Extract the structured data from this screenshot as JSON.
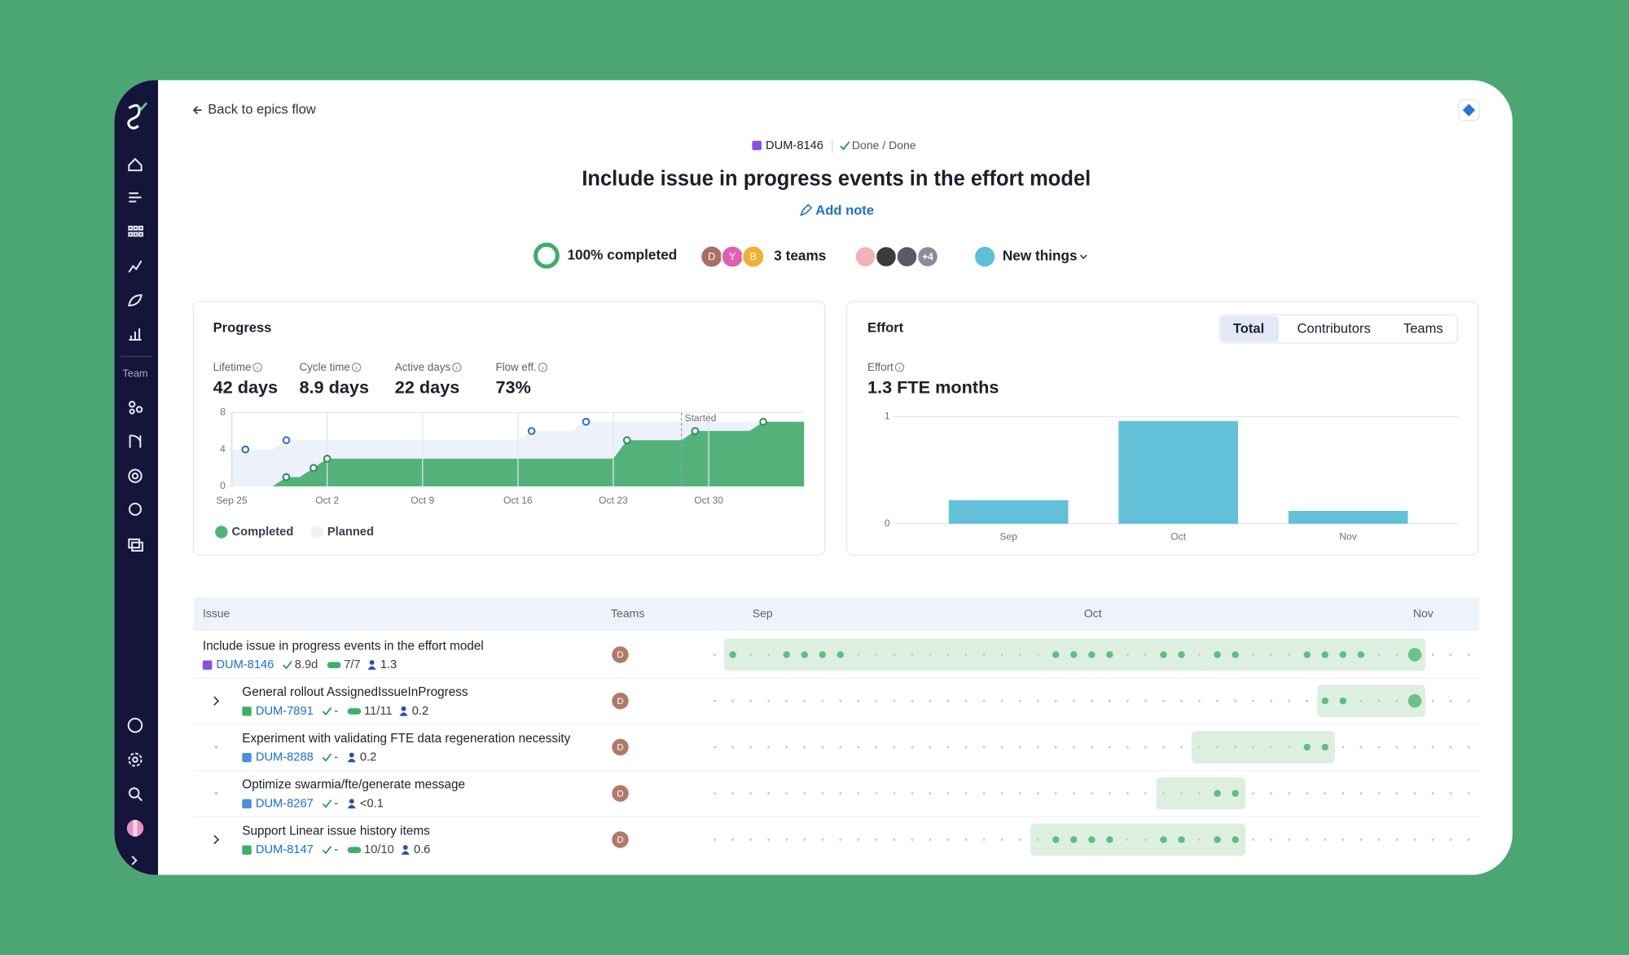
{
  "nav": {
    "back": "Back to epics flow",
    "team_section": "Team"
  },
  "header": {
    "key": "DUM-8146",
    "status": "Done / Done",
    "title": "Include issue in progress events in the effort model",
    "add_note": "Add note"
  },
  "summary": {
    "completion": "100% completed",
    "team_avatars": [
      "D",
      "Y",
      "B"
    ],
    "teams": "3 teams",
    "contributors_more": "+4",
    "category": "New things"
  },
  "progress": {
    "title": "Progress",
    "metrics": [
      {
        "label": "Lifetime",
        "value": "42 days"
      },
      {
        "label": "Cycle time",
        "value": "8.9 days"
      },
      {
        "label": "Active days",
        "value": "22 days"
      },
      {
        "label": "Flow eff.",
        "value": "73%"
      }
    ],
    "chart": {
      "type": "area",
      "xlim": [
        "Sep 25",
        "Nov 6"
      ],
      "xticks": [
        "Sep 25",
        "Oct 2",
        "Oct 9",
        "Oct 16",
        "Oct 23",
        "Oct 30"
      ],
      "ylim": [
        0,
        8
      ],
      "yticks": [
        0,
        4,
        8
      ],
      "grid": true,
      "annotation": {
        "label": "Started",
        "x": "Oct 28"
      },
      "series": [
        {
          "name": "Completed",
          "color": "#52b27a",
          "marker": "#2f8f57",
          "x": [
            "Sep 29",
            "Oct 1",
            "Oct 2",
            "Oct 24",
            "Oct 29",
            "Nov 3"
          ],
          "values": [
            1,
            2,
            3,
            5,
            6,
            7
          ]
        },
        {
          "name": "Planned",
          "color": "#edf1f9",
          "marker": "#2a6fd0",
          "x": [
            "Sep 26",
            "Sep 29",
            "Oct 17",
            "Oct 21"
          ],
          "values": [
            4,
            5,
            6,
            7
          ]
        }
      ]
    }
  },
  "effort": {
    "title": "Effort",
    "tabs": [
      "Total",
      "Contributors",
      "Teams"
    ],
    "active_tab": 0,
    "metric": {
      "label": "Effort",
      "value": "1.3 FTE months"
    },
    "chart": {
      "type": "bar",
      "categories": [
        "Sep",
        "Oct",
        "Nov"
      ],
      "values": [
        0.22,
        0.96,
        0.12
      ],
      "color": "#62c1d8",
      "ylim": [
        0,
        1
      ],
      "yticks": [
        0,
        1
      ],
      "grid": true
    }
  },
  "table": {
    "columns": [
      "Issue",
      "Teams"
    ],
    "months": [
      "Sep",
      "Oct",
      "Nov"
    ],
    "rows": [
      {
        "title": "Include issue in progress events in the effort model",
        "key": "DUM-8146",
        "kind": "epic",
        "cycle": "8.9d",
        "progress": "7/7",
        "effort": "1.3",
        "team": "D"
      },
      {
        "title": "General rollout AssignedIssueInProgress",
        "key": "DUM-7891",
        "kind": "story",
        "cycle": "-",
        "progress": "11/11",
        "effort": "0.2",
        "team": "D",
        "expandable": true
      },
      {
        "title": "Experiment with validating FTE data regeneration necessity",
        "key": "DUM-8288",
        "kind": "task",
        "cycle": "-",
        "effort": "0.2",
        "team": "D"
      },
      {
        "title": "Optimize swarmia/fte/generate message",
        "key": "DUM-8267",
        "kind": "task",
        "cycle": "-",
        "effort": "<0.1",
        "team": "D"
      },
      {
        "title": "Support Linear issue history items",
        "key": "DUM-8147",
        "kind": "story",
        "cycle": "-",
        "progress": "10/10",
        "effort": "0.6",
        "team": "D",
        "expandable": true
      }
    ]
  }
}
